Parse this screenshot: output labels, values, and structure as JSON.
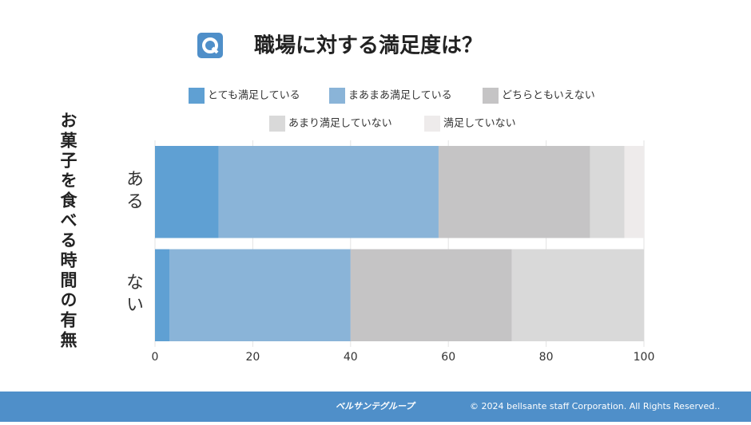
{
  "chart_data": {
    "type": "bar",
    "orientation": "horizontal",
    "stacked": true,
    "title": "職場に対する満足度は？",
    "y_label": "お菓子を食べる時間の有無",
    "categories": [
      "ある",
      "ない"
    ],
    "series": [
      {
        "name": "とても満足している",
        "color": "#5fa0d3",
        "values": [
          13,
          3
        ]
      },
      {
        "name": "まあまあ満足している",
        "color": "#8ab4d8",
        "values": [
          45,
          37
        ]
      },
      {
        "name": "どちらともいえない",
        "color": "#c5c4c5",
        "values": [
          31,
          33
        ]
      },
      {
        "name": "あまり満足していない",
        "color": "#d9d9d9",
        "values": [
          7,
          27
        ]
      },
      {
        "name": "満足していない",
        "color": "#eeebeb",
        "values": [
          4,
          0
        ]
      }
    ],
    "xlim": [
      0,
      100
    ],
    "xticks": [
      0,
      20,
      40,
      60,
      80,
      100
    ],
    "grid": true
  },
  "footer": {
    "logo": "ベルサンテグループ",
    "copyright": "© 2024 bellsante staff Corporation. All Rights Reserved.."
  }
}
